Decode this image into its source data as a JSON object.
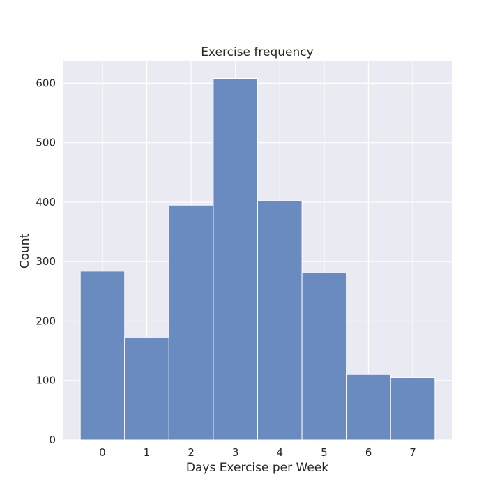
{
  "chart_data": {
    "type": "bar",
    "title": "Exercise frequency",
    "xlabel": "Days Exercise per Week",
    "ylabel": "Count",
    "categories": [
      "0",
      "1",
      "2",
      "3",
      "4",
      "5",
      "6",
      "7"
    ],
    "values": [
      284,
      172,
      395,
      608,
      402,
      281,
      110,
      105
    ],
    "x_ticks": [
      "0",
      "1",
      "2",
      "3",
      "4",
      "5",
      "6",
      "7"
    ],
    "y_ticks": [
      0,
      100,
      200,
      300,
      400,
      500,
      600
    ],
    "ylim": [
      0,
      638
    ],
    "xlim": [
      -0.88,
      7.88
    ],
    "grid": true,
    "colors": {
      "background": "#eaeaf2",
      "bar": "#6a8bbf",
      "bar_edge": "#ffffff",
      "grid": "#ffffff"
    }
  }
}
